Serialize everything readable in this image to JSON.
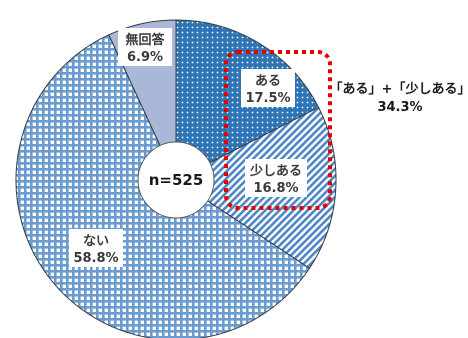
{
  "chart_data": {
    "type": "pie",
    "categories": [
      "ある",
      "少しある",
      "ない",
      "無回答"
    ],
    "values": [
      17.5,
      16.8,
      58.8,
      6.9
    ],
    "value_labels": [
      "17.5%",
      "16.8%",
      "58.8%",
      "6.9%"
    ],
    "center_label": "n=525",
    "donut": true,
    "colors": {
      "aru": "#2e75b6",
      "sukoshi_aru": "#5b8fcc",
      "nai": "#6a9bd1",
      "mukaito": "#a9b8d8",
      "highlight": "#e00000"
    },
    "callout": {
      "label": "「ある」+「少しある」",
      "value": "34.3%"
    }
  }
}
